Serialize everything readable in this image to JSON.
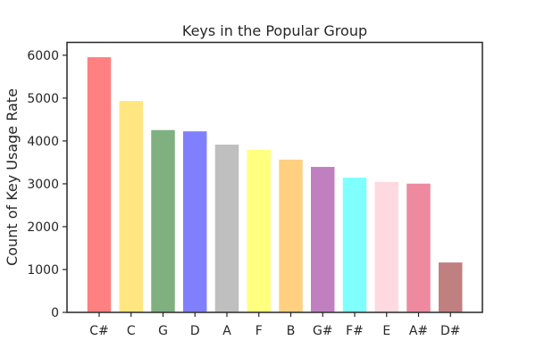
{
  "chart_data": {
    "type": "bar",
    "title": "Keys in the Popular Group",
    "xlabel": "",
    "ylabel": "Count of Key Usage Rate",
    "categories": [
      "C#",
      "C",
      "G",
      "D",
      "A",
      "F",
      "B",
      "G#",
      "F#",
      "E",
      "A#",
      "D#"
    ],
    "values": [
      5970,
      4950,
      4270,
      4240,
      3930,
      3810,
      3580,
      3410,
      3160,
      3060,
      3020,
      1180
    ],
    "colors": [
      "#ff8080",
      "#ffe680",
      "#80b080",
      "#8080ff",
      "#bfbfbf",
      "#ffff80",
      "#ffd080",
      "#c080c0",
      "#80ffff",
      "#ffd9e0",
      "#ee8aa0",
      "#c08080"
    ],
    "ylim": [
      0,
      6300
    ],
    "yticks": [
      0,
      1000,
      2000,
      3000,
      4000,
      5000,
      6000
    ],
    "grid": false,
    "legend": "none"
  }
}
